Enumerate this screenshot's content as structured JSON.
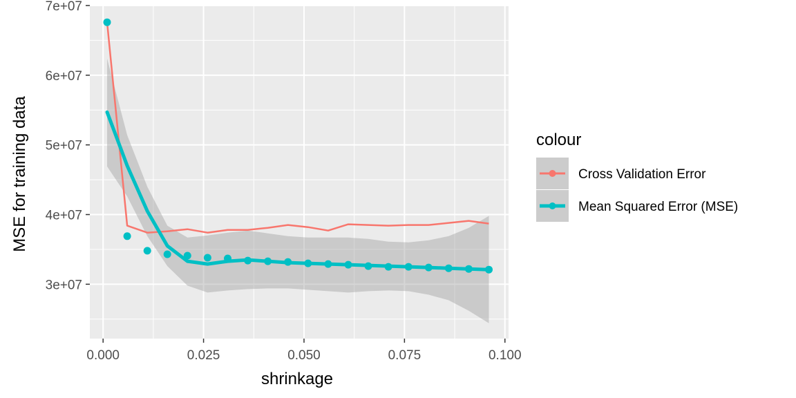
{
  "chart_data": {
    "type": "line",
    "xlabel": "shrinkage",
    "ylabel": "MSE for training data",
    "xlim": [
      -0.0033,
      0.1009
    ],
    "ylim": [
      22200000,
      70000000
    ],
    "x_ticks": [
      0.0,
      0.025,
      0.05,
      0.075,
      0.1
    ],
    "x_tick_labels": [
      "0.000",
      "0.025",
      "0.050",
      "0.075",
      "0.100"
    ],
    "y_ticks": [
      30000000,
      40000000,
      50000000,
      60000000,
      70000000
    ],
    "y_tick_labels": [
      "3e+07",
      "4e+07",
      "5e+07",
      "6e+07",
      "7e+07"
    ],
    "grid": true,
    "legend": {
      "title": "colour",
      "placement": "right",
      "entries": [
        "Cross Validation Error",
        "Mean Squared Error (MSE)"
      ]
    },
    "colors": {
      "cv": "#F8766D",
      "mse": "#00BFC4",
      "panel": "#EBEBEB",
      "grid": "#FFFFFF",
      "ribbon": "#999999"
    },
    "x": [
      0.001,
      0.006,
      0.011,
      0.016,
      0.021,
      0.026,
      0.031,
      0.036,
      0.041,
      0.046,
      0.051,
      0.056,
      0.061,
      0.066,
      0.071,
      0.076,
      0.081,
      0.086,
      0.091,
      0.096
    ],
    "series": [
      {
        "name": "Cross Validation Error",
        "geom": "line",
        "values": [
          67600000,
          38400000,
          37400000,
          37600000,
          37900000,
          37400000,
          37800000,
          37800000,
          38100000,
          38500000,
          38200000,
          37700000,
          38600000,
          38500000,
          38400000,
          38500000,
          38500000,
          38800000,
          39100000,
          38700000
        ]
      },
      {
        "name": "Mean Squared Error (MSE)",
        "geom": "point",
        "values": [
          67600000,
          36900000,
          34800000,
          34300000,
          34100000,
          33800000,
          33700000,
          33400000,
          33300000,
          33200000,
          33000000,
          32900000,
          32800000,
          32600000,
          32500000,
          32500000,
          32400000,
          32300000,
          32200000,
          32100000
        ]
      }
    ],
    "smooth": {
      "series": "Mean Squared Error (MSE)",
      "x": [
        0.001,
        0.006,
        0.011,
        0.016,
        0.021,
        0.026,
        0.031,
        0.036,
        0.041,
        0.046,
        0.051,
        0.056,
        0.061,
        0.066,
        0.071,
        0.076,
        0.081,
        0.086,
        0.091,
        0.096
      ],
      "fit": [
        54700000,
        47000000,
        40500000,
        35500000,
        33300000,
        32900000,
        33300000,
        33500000,
        33300000,
        33100000,
        33000000,
        32900000,
        32800000,
        32700000,
        32600000,
        32500000,
        32400000,
        32300000,
        32200000,
        32100000
      ],
      "lower": [
        46900000,
        42600000,
        36900000,
        32600000,
        29800000,
        28800000,
        29100000,
        29300000,
        29400000,
        29400000,
        29200000,
        29000000,
        28800000,
        29000000,
        29100000,
        29000000,
        28500000,
        27700000,
        26200000,
        24400000
      ],
      "upper": [
        62400000,
        51400000,
        44000000,
        38400000,
        36700000,
        37000000,
        37400000,
        37700000,
        37300000,
        36900000,
        36700000,
        36700000,
        36700000,
        36500000,
        36100000,
        36000000,
        36300000,
        36900000,
        38100000,
        39800000
      ]
    }
  }
}
